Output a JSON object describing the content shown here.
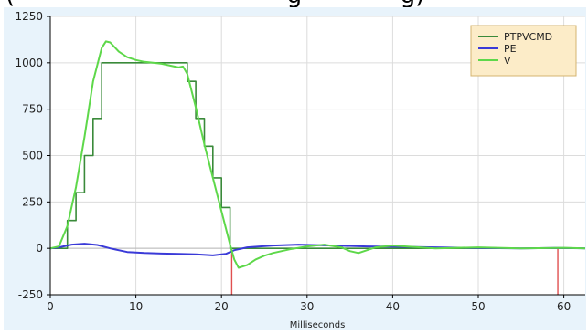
{
  "page": {
    "top_strip_text": "(                                    g             g)"
  },
  "chart_data": {
    "type": "line",
    "xlabel": "Milliseconds",
    "ylabel": "",
    "xlim": [
      0,
      62.5
    ],
    "ylim": [
      -250,
      1250
    ],
    "xticks": [
      0,
      10,
      20,
      30,
      40,
      50,
      60
    ],
    "yticks": [
      -250,
      0,
      250,
      500,
      750,
      1000,
      1250
    ],
    "grid": true,
    "legend_position": "top-right",
    "series": [
      {
        "name": "PTPVCMD",
        "color": "#3a8a3a",
        "stepped": true,
        "x": [
          0,
          1,
          2,
          3,
          4,
          5,
          6,
          15.5,
          16,
          17,
          18,
          19,
          20,
          21,
          22,
          62.5
        ],
        "y": [
          0,
          0,
          150,
          300,
          500,
          700,
          1000,
          1000,
          900,
          700,
          550,
          380,
          220,
          0,
          0,
          0
        ]
      },
      {
        "name": "PE",
        "color": "#3a3ad8",
        "stepped": false,
        "x": [
          0,
          1,
          2.5,
          4,
          5.5,
          7,
          9,
          11,
          13,
          15,
          17,
          19,
          20.5,
          21.5,
          23,
          26,
          29,
          33,
          37,
          41,
          45,
          50,
          55,
          59,
          62.5
        ],
        "y": [
          0,
          5,
          20,
          25,
          18,
          0,
          -20,
          -25,
          -28,
          -30,
          -32,
          -38,
          -30,
          -10,
          5,
          15,
          20,
          15,
          10,
          8,
          5,
          2,
          0,
          2,
          0
        ]
      },
      {
        "name": "V",
        "color": "#5ed84a",
        "stepped": false,
        "x": [
          0,
          1,
          2,
          3,
          4,
          5,
          6,
          6.5,
          7,
          8,
          9,
          10,
          11,
          12,
          13,
          14,
          15,
          15.5,
          16,
          17,
          18,
          19,
          20,
          21,
          21.5,
          22,
          23,
          24,
          25,
          26,
          28,
          30,
          32,
          34,
          35,
          36,
          38,
          40,
          45,
          50,
          55,
          60,
          62.5
        ],
        "y": [
          0,
          10,
          120,
          330,
          600,
          900,
          1080,
          1115,
          1110,
          1060,
          1030,
          1015,
          1005,
          1000,
          995,
          985,
          975,
          980,
          940,
          760,
          560,
          380,
          200,
          20,
          -60,
          -105,
          -90,
          -60,
          -40,
          -25,
          -5,
          10,
          20,
          5,
          -15,
          -25,
          5,
          15,
          0,
          5,
          0,
          3,
          0
        ]
      }
    ],
    "markers": [
      {
        "x": 21.2,
        "color": "#e05050"
      },
      {
        "x": 59.3,
        "color": "#e05050"
      }
    ]
  }
}
